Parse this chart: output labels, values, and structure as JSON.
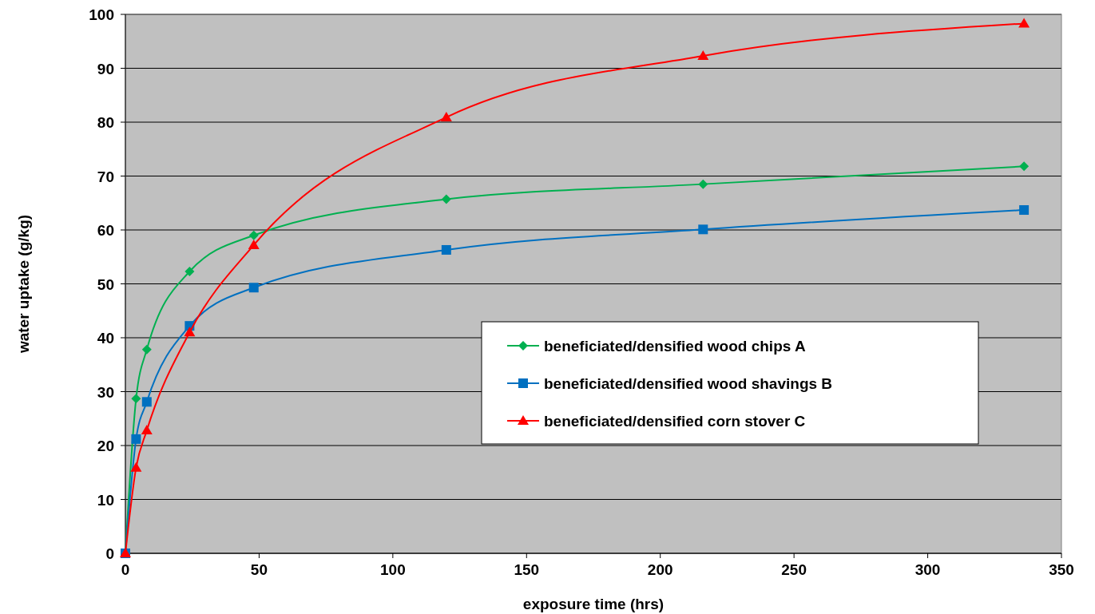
{
  "chart_data": {
    "type": "line",
    "xlabel": "exposure time (hrs)",
    "ylabel": "water uptake (g/kg)",
    "x": [
      0,
      4,
      8,
      24,
      48,
      120,
      216,
      336
    ],
    "series": [
      {
        "name": "beneficiated/densified wood chips A",
        "color": "#00b050",
        "marker": "diamond",
        "values": [
          0,
          28.7,
          37.8,
          52.3,
          59,
          65.7,
          68.5,
          71.8
        ]
      },
      {
        "name": "beneficiated/densified wood shavings B",
        "color": "#0070c0",
        "marker": "square",
        "values": [
          0,
          21.2,
          28.1,
          42.2,
          49.3,
          56.3,
          60.1,
          63.7
        ]
      },
      {
        "name": "beneficiated/densified corn stover C",
        "color": "#ff0000",
        "marker": "triangle",
        "values": [
          0,
          15.9,
          22.8,
          41,
          57.2,
          80.9,
          92.3,
          98.3
        ]
      }
    ],
    "xlim": [
      0,
      350
    ],
    "xticks": [
      0,
      50,
      100,
      150,
      200,
      250,
      300,
      350
    ],
    "ylim": [
      0,
      100
    ],
    "yticks": [
      0,
      10,
      20,
      30,
      40,
      50,
      60,
      70,
      80,
      90,
      100
    ],
    "grid": "y",
    "legend": "right",
    "line_style": "solid"
  }
}
